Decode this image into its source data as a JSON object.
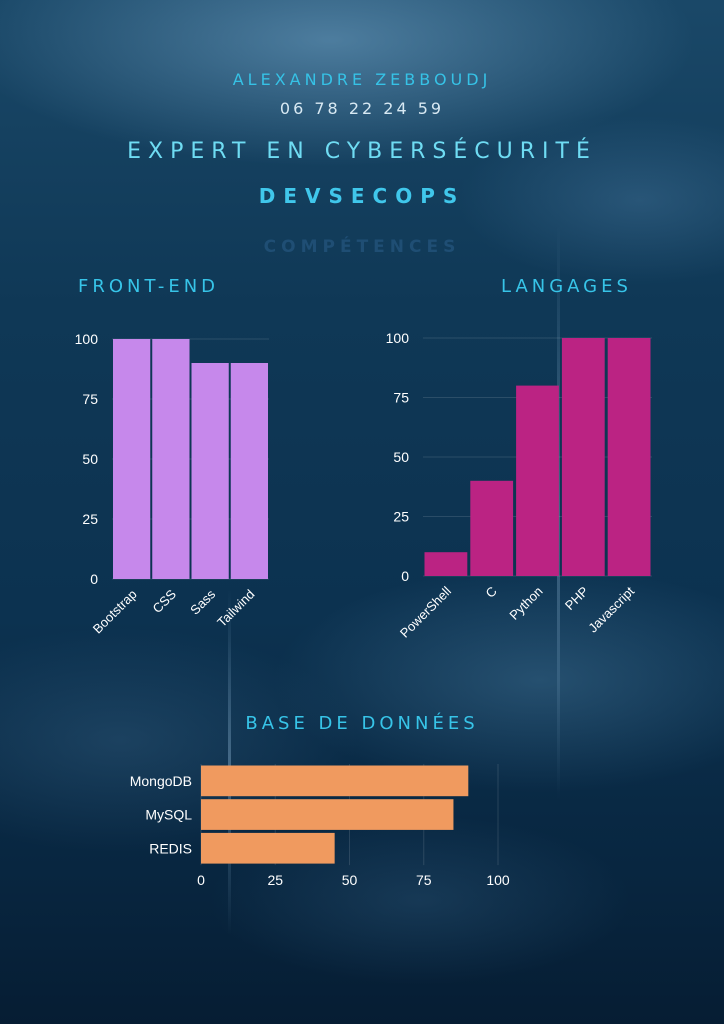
{
  "header": {
    "name": "ALEXANDRE ZEBBOUDJ",
    "phone": "06 78 22 24 59",
    "job_title": "EXPERT EN CYBERSÉCURITÉ",
    "job_subtitle": "DEVSECOPS",
    "section_title": "COMPÉTENCES"
  },
  "colors": {
    "frontend_bar": "#c688eb",
    "languages_bar": "#bb2383",
    "databases_bar": "#f09a5f",
    "heading": "#37c4e8",
    "axis_text": "#ffffff"
  },
  "chart_data": [
    {
      "type": "bar",
      "title": "FRONT-END",
      "categories": [
        "Bootstrap",
        "CSS",
        "Sass",
        "Tailwind"
      ],
      "values": [
        100,
        100,
        90,
        90
      ],
      "ylim": [
        0,
        100
      ],
      "yticks": [
        0,
        25,
        50,
        75,
        100
      ],
      "orientation": "vertical",
      "grid": true
    },
    {
      "type": "bar",
      "title": "LANGAGES",
      "categories": [
        "PowerShell",
        "C",
        "Python",
        "PHP",
        "Javascript"
      ],
      "values": [
        10,
        40,
        80,
        100,
        100
      ],
      "ylim": [
        0,
        100
      ],
      "yticks": [
        0,
        25,
        50,
        75,
        100
      ],
      "orientation": "vertical",
      "grid": true
    },
    {
      "type": "bar",
      "title": "BASE DE DONNÉES",
      "categories": [
        "MongoDB",
        "MySQL",
        "REDIS"
      ],
      "values": [
        90,
        85,
        45
      ],
      "xlim": [
        0,
        100
      ],
      "xticks": [
        0,
        25,
        50,
        75,
        100
      ],
      "orientation": "horizontal",
      "grid": true
    }
  ]
}
